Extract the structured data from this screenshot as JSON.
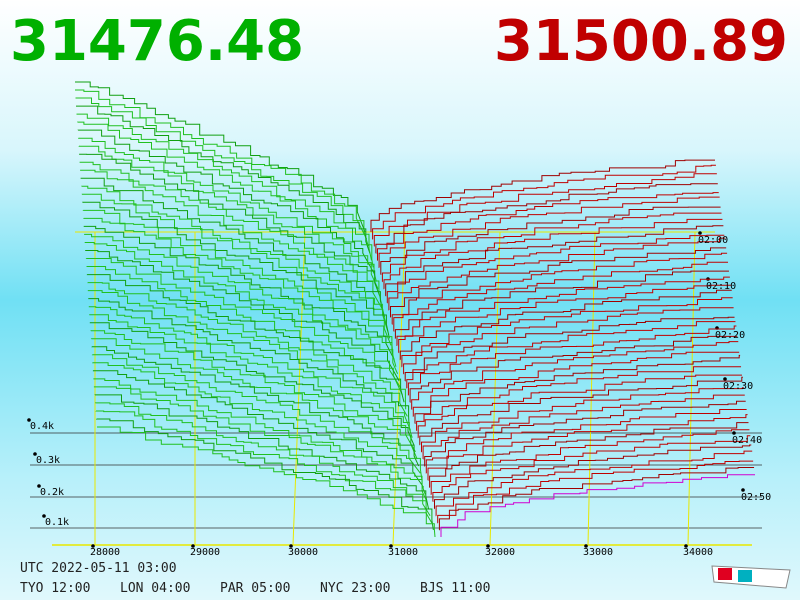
{
  "header": {
    "bid": "31476.48",
    "ask": "31500.89"
  },
  "price_axis": {
    "ticks": [
      "28000",
      "29000",
      "30000",
      "31000",
      "32000",
      "33000",
      "34000"
    ]
  },
  "depth_axis": {
    "ticks": [
      "0.1k",
      "0.2k",
      "0.3k",
      "0.4k"
    ]
  },
  "time_axis": {
    "ticks": [
      "02:00",
      "02:10",
      "02:20",
      "02:30",
      "02:40",
      "02:50"
    ]
  },
  "footer": {
    "utc": "UTC 2022-05-11 03:00",
    "zones": [
      "TYO 12:00",
      "LON 04:00",
      "PAR 05:00",
      "NYC 23:00",
      "BJS 11:00"
    ]
  }
}
